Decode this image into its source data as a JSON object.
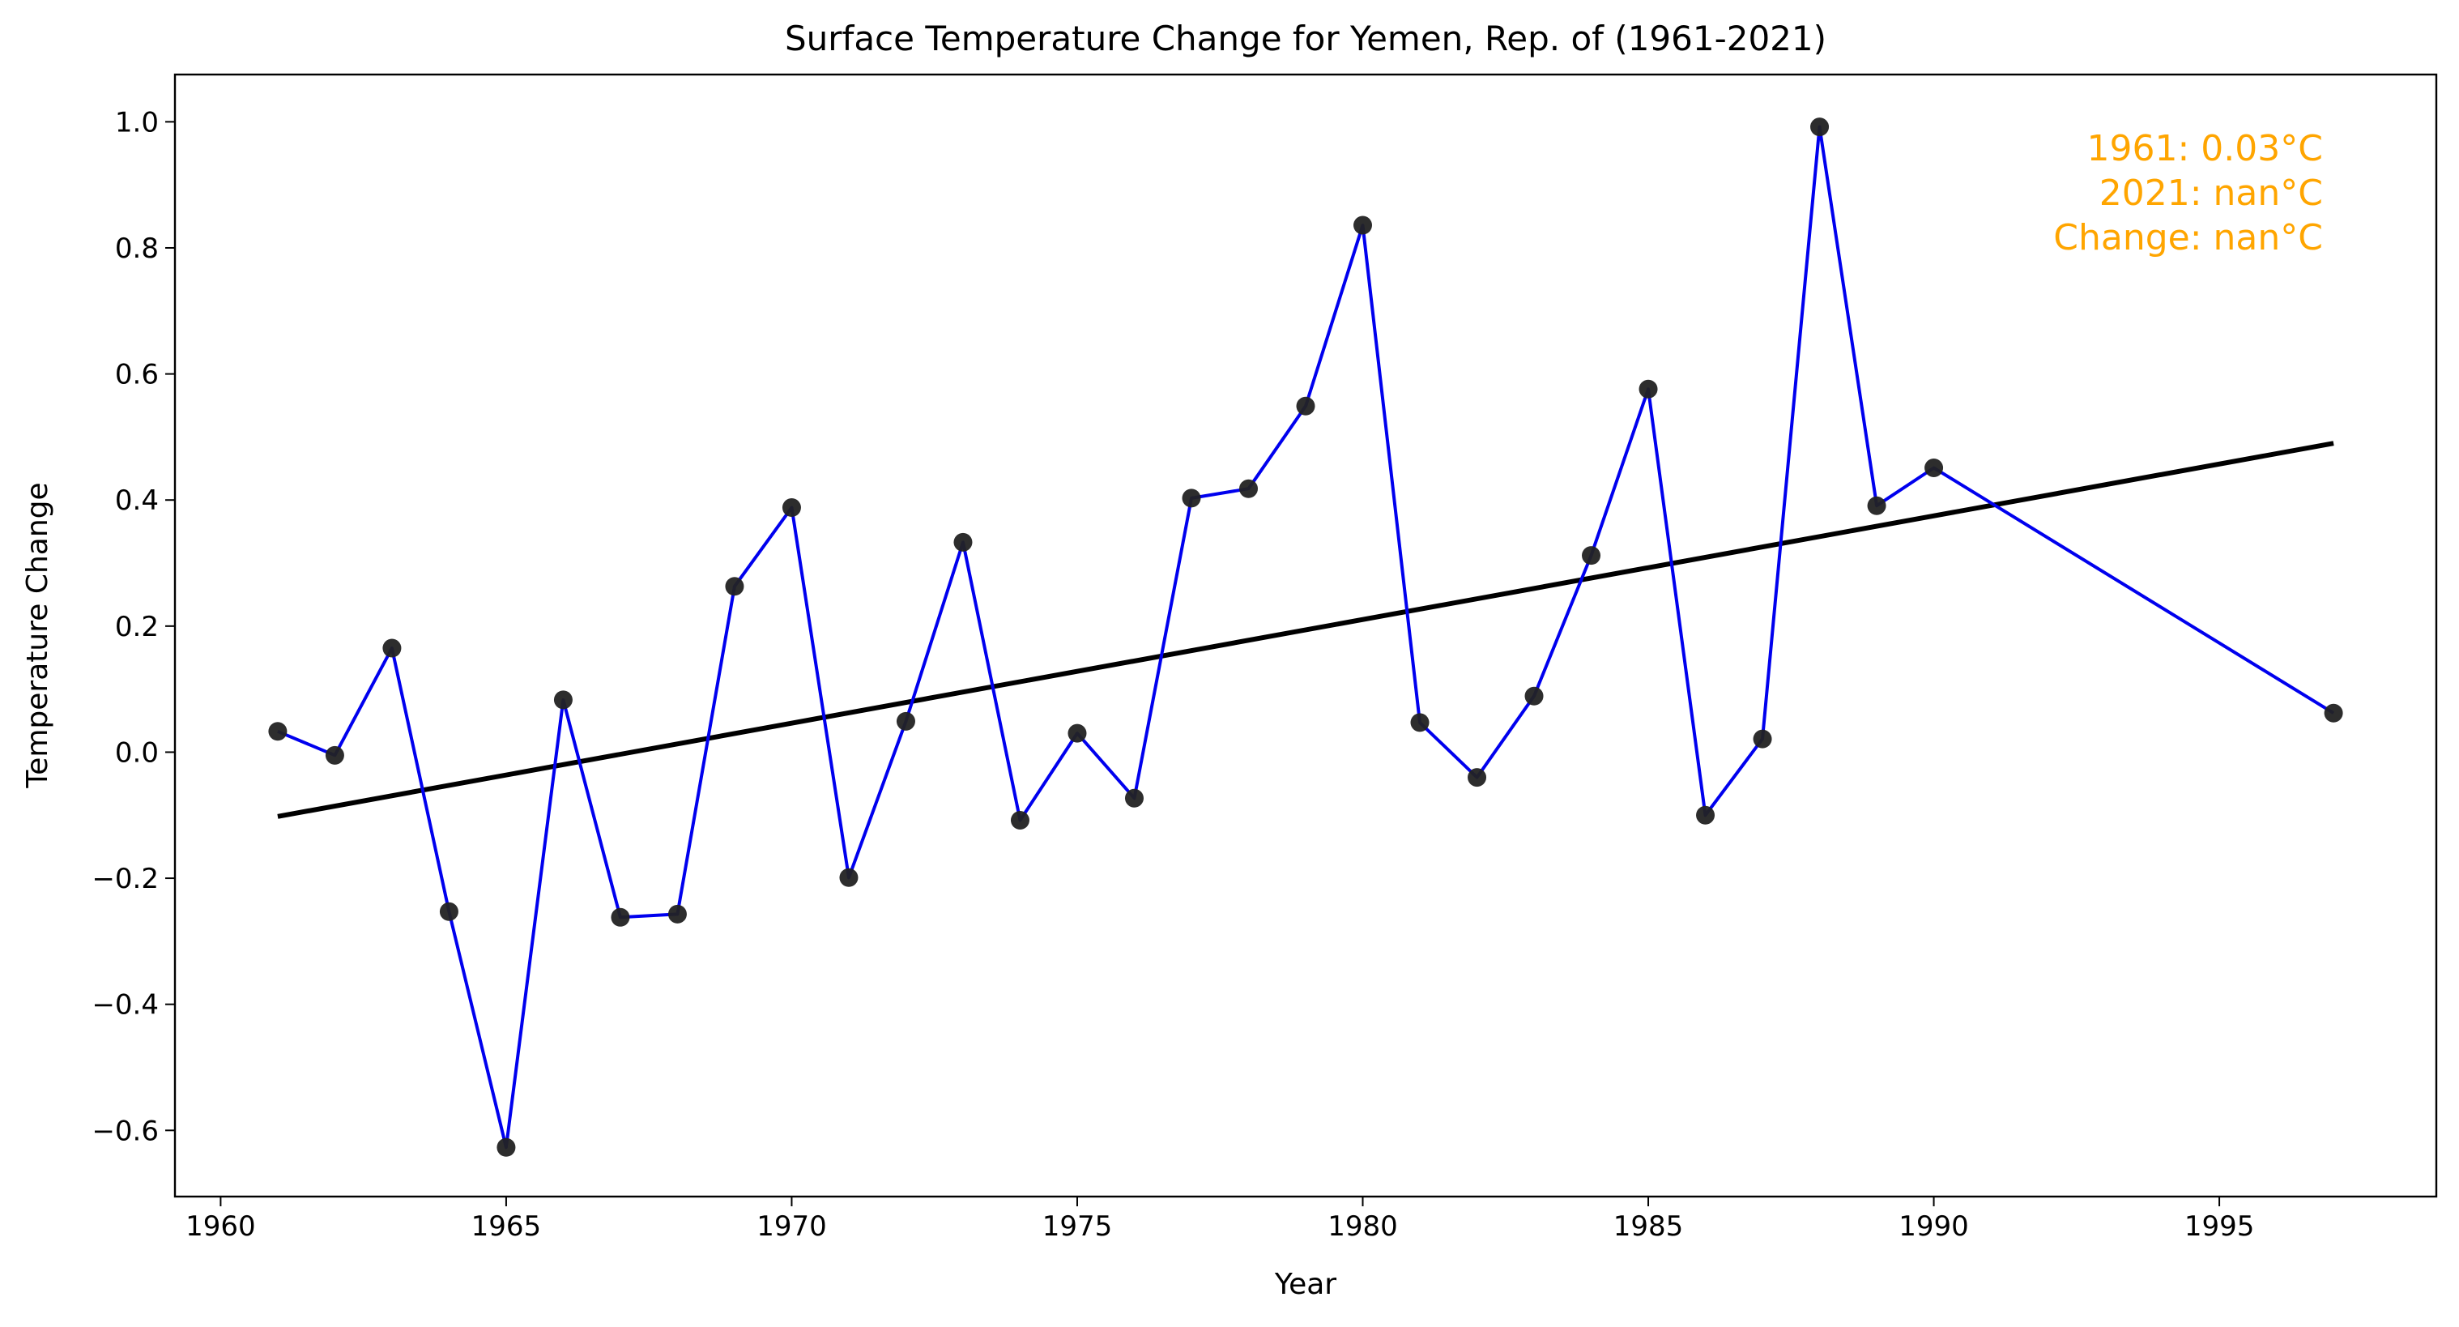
{
  "chart_data": {
    "type": "line",
    "title": "Surface Temperature Change for Yemen, Rep. of (1961-2021)",
    "xlabel": "Year",
    "ylabel": "Temperature Change",
    "xlim": [
      1959.2,
      1998.8
    ],
    "ylim": [
      -0.705,
      1.075
    ],
    "xticks": [
      1960,
      1965,
      1970,
      1975,
      1980,
      1985,
      1990,
      1995
    ],
    "yticks": [
      -0.6,
      -0.4,
      -0.2,
      0.0,
      0.2,
      0.4,
      0.6,
      0.8,
      1.0
    ],
    "ytick_labels": [
      "−0.6",
      "−0.4",
      "−0.2",
      "0.0",
      "0.2",
      "0.4",
      "0.6",
      "0.8",
      "1.0"
    ],
    "grid": false,
    "series": [
      {
        "x": [
          1961,
          1962,
          1963,
          1964,
          1965,
          1966,
          1967,
          1968,
          1969,
          1970,
          1971,
          1972,
          1973,
          1974,
          1975,
          1976,
          1977,
          1978,
          1979,
          1980,
          1981,
          1982,
          1983,
          1984,
          1985,
          1986,
          1987,
          1988,
          1989,
          1990,
          1997
        ],
        "values": [
          0.033,
          -0.005,
          0.165,
          -0.253,
          -0.627,
          0.083,
          -0.262,
          -0.257,
          0.263,
          0.388,
          -0.199,
          0.049,
          0.333,
          -0.108,
          0.03,
          -0.073,
          0.403,
          0.418,
          0.549,
          0.836,
          0.047,
          -0.04,
          0.089,
          0.312,
          0.576,
          -0.1,
          0.021,
          0.992,
          0.391,
          0.451,
          0.062
        ],
        "line_color": "#0000ee",
        "marker_color": "#222222"
      }
    ],
    "trend_line": {
      "x": [
        1961,
        1997
      ],
      "values": [
        -0.102,
        0.49
      ],
      "color": "#000000"
    },
    "annotation": {
      "lines": [
        "1961: 0.03°C",
        "2021: nan°C",
        "Change: nan°C"
      ],
      "color": "#ffa500",
      "placement": "top-right"
    }
  }
}
